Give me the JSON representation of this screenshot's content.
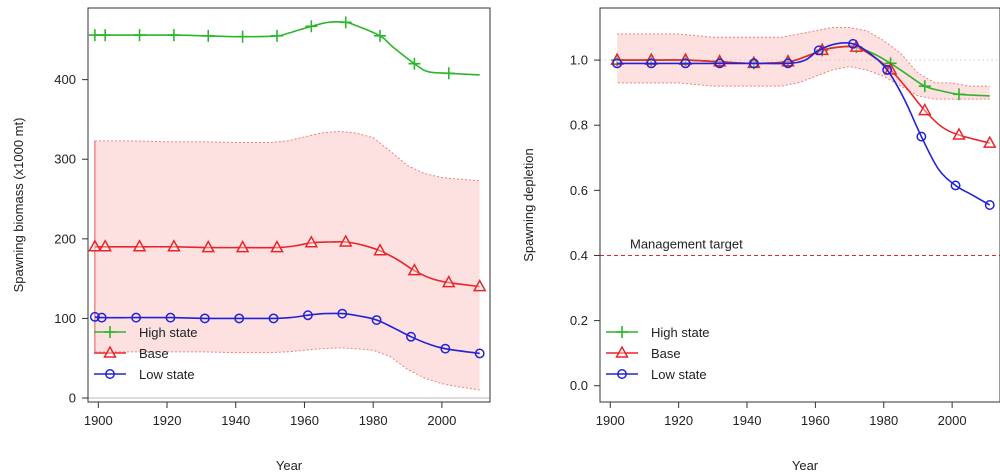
{
  "chart_data": [
    {
      "type": "line",
      "xlabel": "Year",
      "ylabel": "Spawning biomass (x1000 mt)",
      "xlim": [
        1897,
        2014
      ],
      "ylim": [
        -5,
        490
      ],
      "xticks": [
        1900,
        1920,
        1940,
        1960,
        1980,
        2000
      ],
      "yticks": [
        0,
        100,
        200,
        300,
        400
      ],
      "grid": false,
      "legend": "bottom-left",
      "band": {
        "series": "Base",
        "x": [
          1899,
          1910,
          1920,
          1930,
          1940,
          1950,
          1955,
          1960,
          1965,
          1970,
          1975,
          1980,
          1985,
          1990,
          1995,
          2000,
          2005,
          2011
        ],
        "upper": [
          323,
          323,
          322,
          322,
          321,
          321,
          323,
          328,
          333,
          335,
          333,
          327,
          310,
          292,
          282,
          277,
          275,
          273
        ],
        "lower": [
          58,
          58,
          58,
          58,
          57,
          57,
          58,
          60,
          62,
          63,
          62,
          60,
          52,
          36,
          25,
          18,
          14,
          10
        ]
      },
      "series": [
        {
          "name": "High state",
          "color": "#2db52d",
          "marker": "plus",
          "x": [
            1899,
            1902,
            1912,
            1922,
            1932,
            1942,
            1952,
            1955,
            1962,
            1967,
            1972,
            1975,
            1982,
            1986,
            1992,
            1996,
            2002,
            2011
          ],
          "y": [
            456,
            456,
            456,
            456,
            455,
            454,
            455,
            458,
            467,
            472,
            472,
            468,
            455,
            440,
            420,
            410,
            408,
            406
          ],
          "marker_x": [
            1899,
            1902,
            1912,
            1922,
            1932,
            1942,
            1952,
            1962,
            1972,
            1982,
            1992,
            2002
          ]
        },
        {
          "name": "Base",
          "color": "#e8262a",
          "marker": "triangle",
          "x": [
            1899,
            1902,
            1912,
            1922,
            1932,
            1942,
            1952,
            1957,
            1962,
            1967,
            1972,
            1977,
            1982,
            1987,
            1992,
            1997,
            2002,
            2011
          ],
          "y": [
            190,
            190,
            190,
            190,
            189,
            189,
            189,
            191,
            195,
            196,
            196,
            192,
            185,
            174,
            160,
            150,
            145,
            140
          ],
          "marker_x": [
            1899,
            1902,
            1912,
            1922,
            1932,
            1942,
            1952,
            1962,
            1972,
            1982,
            1992,
            2002,
            2011
          ]
        },
        {
          "name": "Low state",
          "color": "#2323d6",
          "marker": "circle",
          "x": [
            1899,
            1901,
            1911,
            1921,
            1931,
            1941,
            1951,
            1956,
            1961,
            1966,
            1971,
            1976,
            1981,
            1986,
            1991,
            1996,
            2001,
            2011
          ],
          "y": [
            102,
            101,
            101,
            101,
            100,
            100,
            100,
            101,
            104,
            106,
            106,
            103,
            98,
            88,
            77,
            68,
            62,
            56
          ],
          "marker_x": [
            1899,
            1901,
            1911,
            1921,
            1931,
            1941,
            1951,
            1961,
            1971,
            1981,
            1991,
            2001,
            2011
          ]
        }
      ]
    },
    {
      "type": "line",
      "xlabel": "Year",
      "ylabel": "Spawning depletion",
      "xlim": [
        1897,
        2014
      ],
      "ylim": [
        -0.05,
        1.16
      ],
      "xticks": [
        1900,
        1920,
        1940,
        1960,
        1980,
        2000
      ],
      "yticks": [
        0.0,
        0.2,
        0.4,
        0.6,
        0.8,
        1.0
      ],
      "ytick_labels": [
        "0.0",
        "0.2",
        "0.4",
        "0.6",
        "0.8",
        "1.0"
      ],
      "grid": false,
      "legend": "bottom-left",
      "reference_lines": [
        {
          "y": 1.0,
          "color": "#cccccc",
          "style": "dotted"
        },
        {
          "y": 0.4,
          "color": "#e8262a",
          "style": "dashed",
          "label": "Management target"
        }
      ],
      "band": {
        "series": "Base",
        "x": [
          1902,
          1910,
          1920,
          1930,
          1940,
          1950,
          1955,
          1960,
          1965,
          1970,
          1975,
          1980,
          1985,
          1990,
          1995,
          2000,
          2005,
          2011
        ],
        "upper": [
          1.08,
          1.08,
          1.08,
          1.07,
          1.07,
          1.07,
          1.08,
          1.09,
          1.1,
          1.1,
          1.09,
          1.06,
          1.02,
          0.96,
          0.93,
          0.93,
          0.92,
          0.92
        ],
        "lower": [
          0.93,
          0.93,
          0.93,
          0.92,
          0.92,
          0.92,
          0.93,
          0.95,
          0.97,
          0.98,
          0.97,
          0.95,
          0.92,
          0.89,
          0.88,
          0.88,
          0.88,
          0.88
        ]
      },
      "series": [
        {
          "name": "High state",
          "color": "#2db52d",
          "marker": "plus",
          "x": [
            1902,
            1912,
            1922,
            1932,
            1942,
            1952,
            1957,
            1962,
            1967,
            1972,
            1977,
            1982,
            1987,
            1992,
            1997,
            2002,
            2011
          ],
          "y": [
            1.0,
            1.0,
            1.0,
            0.995,
            0.99,
            0.995,
            1.01,
            1.03,
            1.04,
            1.04,
            1.02,
            0.99,
            0.955,
            0.92,
            0.905,
            0.895,
            0.89
          ],
          "marker_x": [
            1902,
            1912,
            1922,
            1932,
            1942,
            1952,
            1962,
            1972,
            1982,
            1992,
            2002
          ]
        },
        {
          "name": "Base",
          "color": "#e8262a",
          "marker": "triangle",
          "x": [
            1902,
            1912,
            1922,
            1932,
            1942,
            1952,
            1957,
            1962,
            1967,
            1972,
            1977,
            1982,
            1987,
            1992,
            1997,
            2002,
            2011
          ],
          "y": [
            1.0,
            1.0,
            1.0,
            0.995,
            0.99,
            0.995,
            1.01,
            1.03,
            1.04,
            1.04,
            1.01,
            0.97,
            0.91,
            0.845,
            0.795,
            0.77,
            0.745
          ],
          "marker_x": [
            1902,
            1912,
            1922,
            1932,
            1942,
            1952,
            1962,
            1972,
            1982,
            1992,
            2002,
            2011
          ]
        },
        {
          "name": "Low state",
          "color": "#2323d6",
          "marker": "circle",
          "x": [
            1902,
            1912,
            1922,
            1932,
            1942,
            1952,
            1957,
            1961,
            1966,
            1971,
            1976,
            1981,
            1986,
            1991,
            1996,
            2001,
            2006,
            2011
          ],
          "y": [
            0.99,
            0.99,
            0.99,
            0.99,
            0.99,
            0.99,
            1.0,
            1.03,
            1.05,
            1.05,
            1.02,
            0.97,
            0.88,
            0.765,
            0.665,
            0.615,
            0.585,
            0.555
          ],
          "marker_x": [
            1902,
            1912,
            1922,
            1932,
            1942,
            1952,
            1961,
            1971,
            1981,
            1991,
            2001,
            2011
          ]
        }
      ]
    }
  ]
}
